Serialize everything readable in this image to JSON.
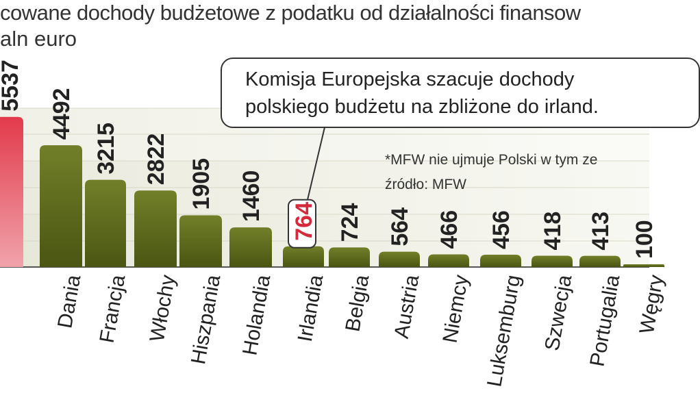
{
  "header": {
    "title": "cowane dochody budżetowe z podatku od działalności finansow",
    "subtitle": "aln euro"
  },
  "callout": {
    "line1": "Komisja Europejska szacuje dochody",
    "line2": "polskiego budżetu na zbliżone do irland."
  },
  "notes": {
    "footnote": "*MFW nie ujmuje Polski w tym ze",
    "source": "źródło: MFW"
  },
  "colors": {
    "bar_olive": "#5d6a1c",
    "bar_highlight": "#d62a3c",
    "label_highlight": "#d62a3c",
    "text_dark": "#222222"
  },
  "chart_data": {
    "type": "bar",
    "title": "cowane dochody budżetowe z podatku od działalności finansow",
    "subtitle": "aln euro",
    "xlabel": "",
    "ylabel": "",
    "grid": true,
    "categories": [
      "",
      "Dania",
      "Francja",
      "Włochy",
      "Hiszpania",
      "Holandia",
      "Irlandia",
      "Belgia",
      "Austria",
      "Niemcy",
      "Luksemburg",
      "Szwecja",
      "Portugalia",
      "Węgry"
    ],
    "values": [
      5537,
      4492,
      3215,
      2822,
      1905,
      1460,
      764,
      724,
      564,
      466,
      456,
      418,
      413,
      100
    ],
    "value_labels": [
      "5537",
      "4492",
      "3215",
      "2822",
      "1905",
      "1460",
      "764",
      "724",
      "564",
      "466",
      "456",
      "418",
      "413",
      "100"
    ],
    "highlight_bar": 0,
    "highlight_label": 6
  }
}
